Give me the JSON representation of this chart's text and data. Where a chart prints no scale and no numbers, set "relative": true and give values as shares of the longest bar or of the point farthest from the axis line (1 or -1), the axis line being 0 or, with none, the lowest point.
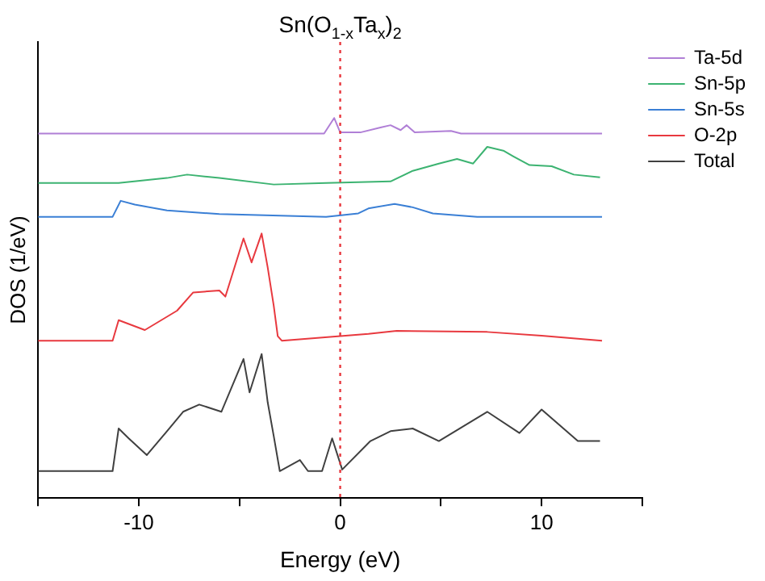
{
  "chart_data": {
    "type": "line",
    "title": "Sn(O$_{1-x}$Ta$_{x}$)$_{2}$",
    "xlabel": "Energy (eV)",
    "ylabel": "DOS (1/eV)",
    "relative": true,
    "xlim": [
      -15,
      15
    ],
    "xticks": [
      {
        "value": -15,
        "label": null
      },
      -10,
      {
        "value": -5,
        "label": null
      },
      0,
      {
        "value": 5,
        "label": null
      },
      10,
      {
        "value": 15,
        "label": null
      }
    ],
    "grid": false,
    "legend": "top right",
    "marker": "none",
    "line_style": "solid",
    "ref_lines": [
      {
        "axis": "x",
        "value": 0,
        "color": "#e8393f",
        "line_style": "dotted"
      }
    ],
    "series": [
      {
        "name": "Ta-5d",
        "color": "#b07fd6",
        "x": [
          -15,
          -0.8,
          -0.3,
          0,
          1.0,
          2.0,
          2.5,
          3.0,
          3.3,
          3.7,
          5.5,
          6,
          13
        ],
        "values": [
          0.959,
          0.959,
          1.0,
          0.962,
          0.962,
          0.975,
          0.981,
          0.968,
          0.981,
          0.962,
          0.966,
          0.959,
          0.959
        ]
      },
      {
        "name": "Sn-5p",
        "color": "#3cb371",
        "x": [
          -15,
          -11.0,
          -8.6,
          -7.6,
          -6.0,
          -3.3,
          -0.7,
          2.5,
          3.6,
          4.9,
          5.8,
          6.6,
          7.3,
          8.1,
          8.6,
          9.4,
          10.5,
          11.6,
          12.9
        ],
        "values": [
          0.829,
          0.829,
          0.842,
          0.851,
          0.842,
          0.825,
          0.829,
          0.833,
          0.861,
          0.88,
          0.892,
          0.88,
          0.924,
          0.914,
          0.899,
          0.876,
          0.873,
          0.851,
          0.844
        ]
      },
      {
        "name": "Sn-5s",
        "color": "#3a7fd5",
        "x": [
          -15,
          -11.3,
          -10.9,
          -10.2,
          -8.6,
          -6.0,
          -0.7,
          0.9,
          1.4,
          2.7,
          3.6,
          4.6,
          6.8,
          13
        ],
        "values": [
          0.74,
          0.74,
          0.782,
          0.772,
          0.757,
          0.747,
          0.74,
          0.749,
          0.762,
          0.774,
          0.765,
          0.749,
          0.74,
          0.74
        ]
      },
      {
        "name": "O-2p",
        "color": "#e8393f",
        "x": [
          -15,
          -11.3,
          -11.0,
          -9.7,
          -8.1,
          -7.3,
          -6.0,
          -5.7,
          -4.8,
          -4.4,
          -3.9,
          -3.6,
          -3.3,
          -3.1,
          -2.9,
          1.4,
          2.8,
          7.3,
          10.0,
          13
        ],
        "values": [
          0.414,
          0.414,
          0.468,
          0.442,
          0.493,
          0.541,
          0.546,
          0.53,
          0.683,
          0.62,
          0.696,
          0.607,
          0.506,
          0.426,
          0.414,
          0.432,
          0.44,
          0.437,
          0.427,
          0.414
        ]
      },
      {
        "name": "Total",
        "color": "#404040",
        "x": [
          -15,
          -11.3,
          -11.0,
          -10.5,
          -9.6,
          -8.6,
          -7.8,
          -7.0,
          -5.9,
          -4.8,
          -4.5,
          -3.9,
          -3.6,
          -3.3,
          -3.0,
          -2.0,
          -1.6,
          -0.9,
          -0.4,
          0.1,
          1.5,
          2.5,
          3.6,
          4.9,
          7.3,
          8.9,
          10.0,
          11.8,
          12.9
        ],
        "values": [
          0.071,
          0.071,
          0.183,
          0.157,
          0.113,
          0.176,
          0.227,
          0.246,
          0.227,
          0.366,
          0.278,
          0.379,
          0.252,
          0.163,
          0.071,
          0.1,
          0.071,
          0.071,
          0.157,
          0.075,
          0.15,
          0.176,
          0.183,
          0.15,
          0.227,
          0.171,
          0.233,
          0.15,
          0.15
        ]
      }
    ]
  }
}
